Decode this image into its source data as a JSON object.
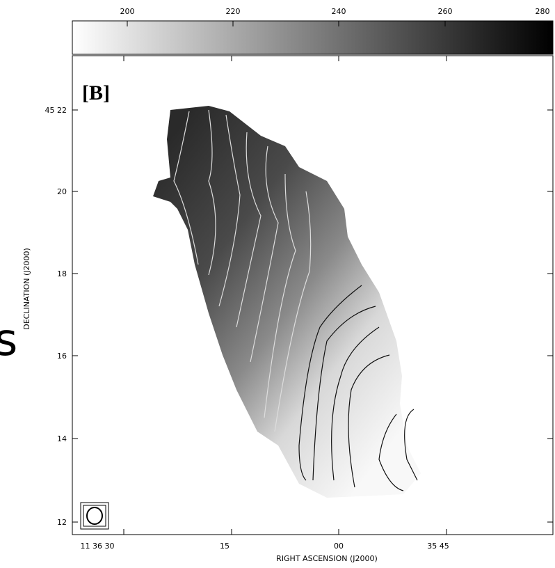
{
  "colorbar": {
    "ticks": [
      "200",
      "220",
      "240",
      "260",
      "280"
    ]
  },
  "panel_label": "[B]",
  "y_axis": {
    "label": "DECLINATION (J2000)",
    "ticks": [
      "45 22",
      "20",
      "18",
      "16",
      "14",
      "12"
    ]
  },
  "x_axis": {
    "label": "RIGHT ASCENSION (J2000)",
    "ticks": [
      "11 36 30",
      "15",
      "00",
      "35 45"
    ]
  },
  "side_text": "s"
}
